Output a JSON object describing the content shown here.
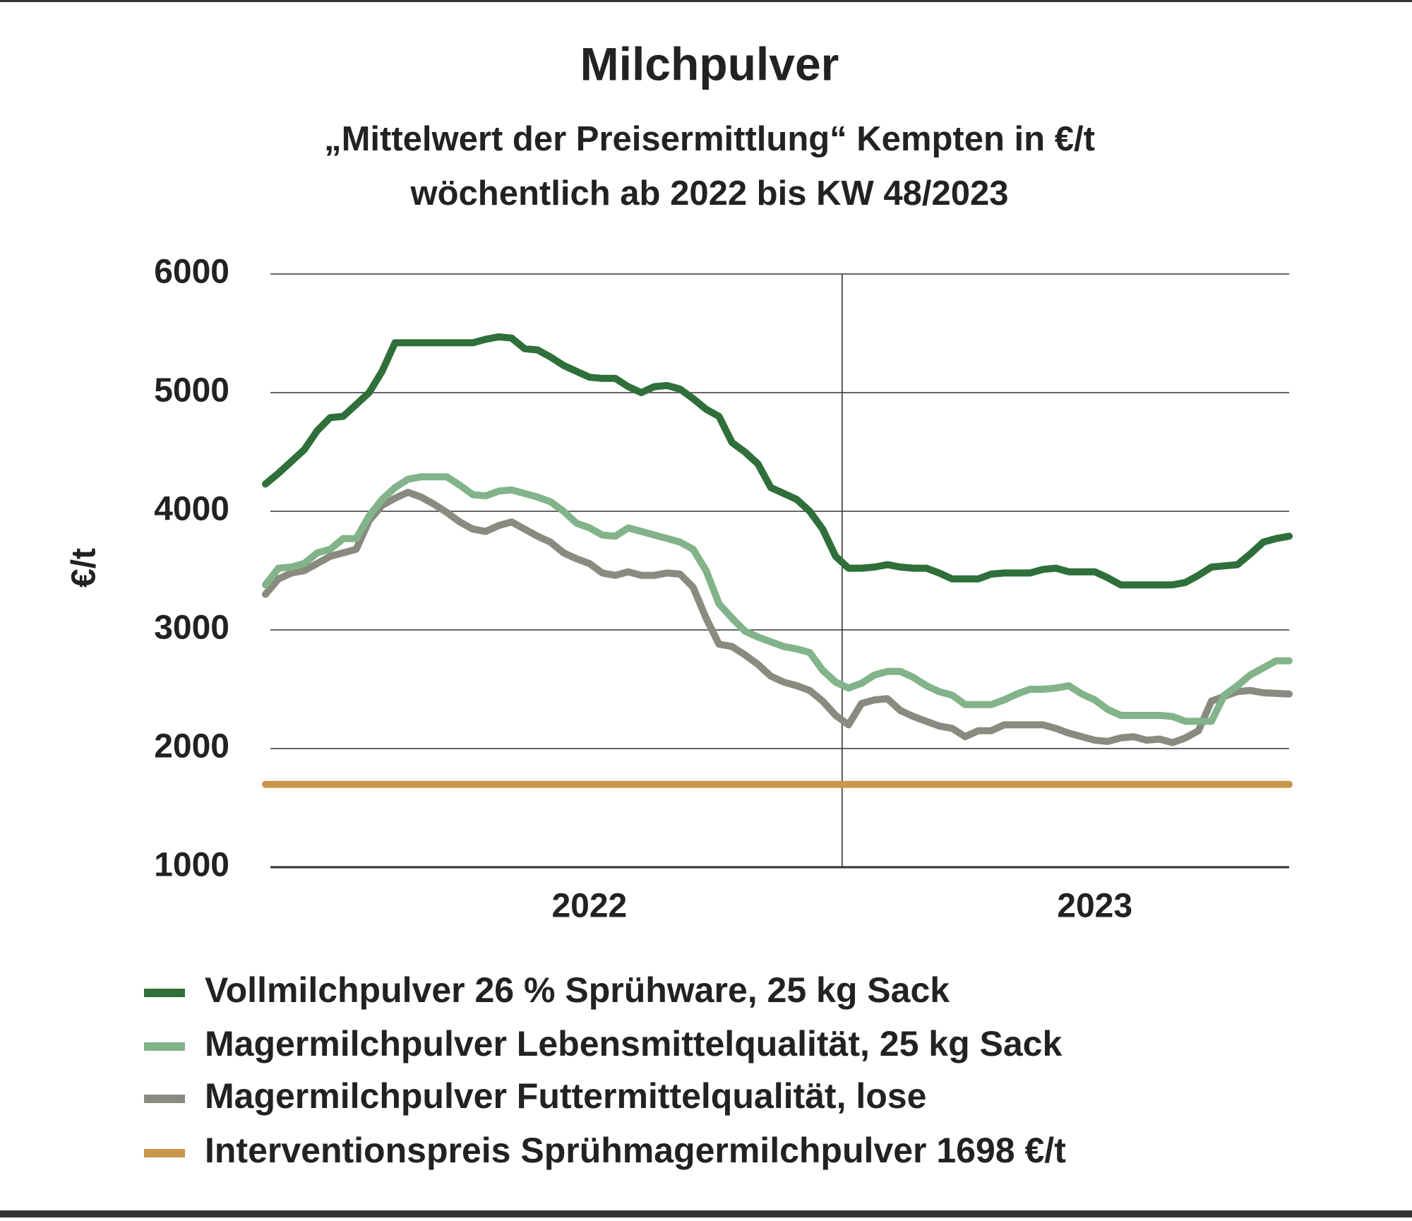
{
  "chart_data": {
    "type": "line",
    "title": "Milchpulver",
    "subtitle": [
      "„Mittelwert der Preisermittlung“ Kempten in €/t",
      "wöchentlich ab 2022 bis KW 48/2023"
    ],
    "y_axis_label": "€/t",
    "categories": [
      null,
      null,
      null,
      null,
      null,
      null,
      null,
      null,
      null,
      null,
      null,
      null,
      null,
      null,
      null,
      null,
      null,
      null,
      null,
      null,
      null,
      null,
      null,
      null,
      null,
      "2022",
      null,
      null,
      null,
      null,
      null,
      null,
      null,
      null,
      null,
      null,
      null,
      null,
      null,
      null,
      null,
      null,
      null,
      null,
      null,
      null,
      null,
      null,
      null,
      null,
      null,
      null,
      null,
      null,
      null,
      null,
      null,
      null,
      null,
      null,
      null,
      null,
      null,
      null,
      "2023",
      null,
      null,
      null,
      null,
      null,
      null,
      null,
      null,
      null,
      null,
      null,
      null,
      null,
      null,
      null
    ],
    "ylim": [
      1000,
      6000
    ],
    "yticks": [
      1000,
      2000,
      3000,
      4000,
      5000,
      6000
    ],
    "grid": true,
    "series": [
      {
        "name": "Vollmilchpulver 26 % Sprühware, 25 kg Sack",
        "color": "#2f6f3a",
        "values": [
          4230,
          4320,
          4420,
          4520,
          4680,
          4790,
          4800,
          4900,
          5000,
          5180,
          5420,
          5420,
          5420,
          5420,
          5420,
          5420,
          5420,
          5450,
          5470,
          5460,
          5370,
          5360,
          5300,
          5230,
          5180,
          5130,
          5120,
          5120,
          5050,
          5000,
          5050,
          5060,
          5030,
          4950,
          4860,
          4800,
          4580,
          4500,
          4400,
          4200,
          4150,
          4100,
          4000,
          3850,
          3620,
          3520,
          3520,
          3530,
          3550,
          3530,
          3520,
          3520,
          3480,
          3430,
          3430,
          3430,
          3470,
          3480,
          3480,
          3480,
          3510,
          3520,
          3490,
          3490,
          3490,
          3440,
          3380,
          3380,
          3380,
          3380,
          3380,
          3400,
          3460,
          3530,
          3540,
          3550,
          3640,
          3740,
          3770,
          3790
        ]
      },
      {
        "name": "Magermilchpulver Lebensmittelqualität, 25 kg Sack",
        "color": "#82b38a",
        "values": [
          3380,
          3520,
          3530,
          3560,
          3650,
          3680,
          3770,
          3770,
          3960,
          4100,
          4200,
          4270,
          4290,
          4290,
          4290,
          4220,
          4140,
          4130,
          4170,
          4180,
          4150,
          4120,
          4080,
          4000,
          3900,
          3860,
          3800,
          3790,
          3860,
          3830,
          3800,
          3770,
          3740,
          3680,
          3500,
          3220,
          3100,
          2990,
          2940,
          2900,
          2860,
          2840,
          2810,
          2660,
          2560,
          2510,
          2550,
          2620,
          2650,
          2650,
          2600,
          2530,
          2480,
          2450,
          2370,
          2370,
          2370,
          2410,
          2460,
          2500,
          2500,
          2510,
          2530,
          2460,
          2410,
          2330,
          2280,
          2280,
          2280,
          2280,
          2270,
          2230,
          2230,
          2230,
          2450,
          2530,
          2620,
          2680,
          2740,
          2740
        ]
      },
      {
        "name": "Magermilchpulver Futtermittelqualität, lose",
        "color": "#8a8b80",
        "values": [
          3300,
          3430,
          3480,
          3500,
          3560,
          3620,
          3650,
          3680,
          3920,
          4050,
          4110,
          4160,
          4120,
          4060,
          3990,
          3910,
          3850,
          3830,
          3880,
          3910,
          3850,
          3790,
          3740,
          3650,
          3600,
          3560,
          3480,
          3460,
          3490,
          3460,
          3460,
          3480,
          3470,
          3360,
          3100,
          2880,
          2860,
          2790,
          2710,
          2610,
          2560,
          2530,
          2490,
          2400,
          2280,
          2200,
          2380,
          2410,
          2420,
          2320,
          2270,
          2230,
          2190,
          2170,
          2100,
          2150,
          2150,
          2200,
          2200,
          2200,
          2200,
          2170,
          2130,
          2100,
          2070,
          2060,
          2090,
          2100,
          2070,
          2080,
          2050,
          2090,
          2150,
          2400,
          2440,
          2480,
          2490,
          2470,
          2465,
          2460
        ]
      },
      {
        "name": "Interventionspreis Sprühmagermilchpulver 1698 €/t",
        "color": "#c9964c",
        "values": [
          1698,
          1698,
          1698,
          1698,
          1698,
          1698,
          1698,
          1698,
          1698,
          1698,
          1698,
          1698,
          1698,
          1698,
          1698,
          1698,
          1698,
          1698,
          1698,
          1698,
          1698,
          1698,
          1698,
          1698,
          1698,
          1698,
          1698,
          1698,
          1698,
          1698,
          1698,
          1698,
          1698,
          1698,
          1698,
          1698,
          1698,
          1698,
          1698,
          1698,
          1698,
          1698,
          1698,
          1698,
          1698,
          1698,
          1698,
          1698,
          1698,
          1698,
          1698,
          1698,
          1698,
          1698,
          1698,
          1698,
          1698,
          1698,
          1698,
          1698,
          1698,
          1698,
          1698,
          1698,
          1698,
          1698,
          1698,
          1698,
          1698,
          1698,
          1698,
          1698,
          1698,
          1698,
          1698,
          1698,
          1698,
          1698,
          1698,
          1698
        ]
      }
    ]
  }
}
